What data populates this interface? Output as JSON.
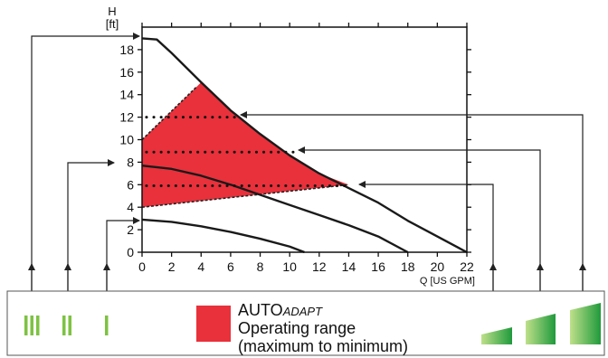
{
  "axes": {
    "y_title": "H",
    "y_unit": "[ft]",
    "x_title": "Q [US GPM]",
    "x_ticks": [
      0,
      2,
      4,
      6,
      8,
      10,
      12,
      14,
      16,
      18,
      20,
      22
    ],
    "y_ticks": [
      0,
      2,
      4,
      6,
      8,
      10,
      12,
      14,
      16,
      18
    ]
  },
  "curves": [
    {
      "name": "III",
      "points": [
        [
          0,
          19
        ],
        [
          1,
          18.9
        ],
        [
          2,
          17.7
        ],
        [
          4,
          15.1
        ],
        [
          6,
          12.6
        ],
        [
          8,
          10.5
        ],
        [
          10,
          8.6
        ],
        [
          12,
          7.0
        ],
        [
          14,
          5.7
        ],
        [
          16,
          4.4
        ],
        [
          18,
          2.8
        ],
        [
          20,
          1.4
        ],
        [
          22,
          0
        ]
      ]
    },
    {
      "name": "II",
      "points": [
        [
          0,
          7.7
        ],
        [
          2,
          7.4
        ],
        [
          4,
          6.8
        ],
        [
          6,
          6.0
        ],
        [
          8,
          5.1
        ],
        [
          10,
          4.2
        ],
        [
          12,
          3.3
        ],
        [
          14,
          2.4
        ],
        [
          16,
          1.4
        ],
        [
          18,
          0
        ]
      ]
    },
    {
      "name": "I",
      "points": [
        [
          0,
          2.9
        ],
        [
          2,
          2.7
        ],
        [
          4,
          2.3
        ],
        [
          6,
          1.8
        ],
        [
          8,
          1.2
        ],
        [
          10,
          0.5
        ],
        [
          11,
          0
        ]
      ]
    }
  ],
  "operating_range": {
    "color": "#e8313b",
    "polygon": [
      [
        0,
        10
      ],
      [
        3.7,
        14.7
      ],
      [
        4,
        15.1
      ],
      [
        6,
        12.6
      ],
      [
        8,
        10.5
      ],
      [
        10,
        8.6
      ],
      [
        12,
        7.0
      ],
      [
        14,
        6.0
      ],
      [
        0,
        4.0
      ]
    ]
  },
  "dotted_lines": [
    {
      "y": 12,
      "x_from": 0.3,
      "x_to": 6.6
    },
    {
      "y": 8.9,
      "x_from": 0.3,
      "x_to": 10.5
    },
    {
      "y": 5.9,
      "x_from": 0.3,
      "x_to": 14.0
    }
  ],
  "legend": {
    "speed_labels": [
      "III",
      "II",
      "I"
    ],
    "auto_prefix": "AUTO",
    "auto_suffix": "ADAPT",
    "operating_line1": "Operating range",
    "operating_line2": "(maximum to minimum)",
    "bar_color": "#7dc242",
    "ramp_color_light": "#bfe08a",
    "ramp_color_dark": "#1f9a3c",
    "swatch_color": "#e8313b"
  }
}
